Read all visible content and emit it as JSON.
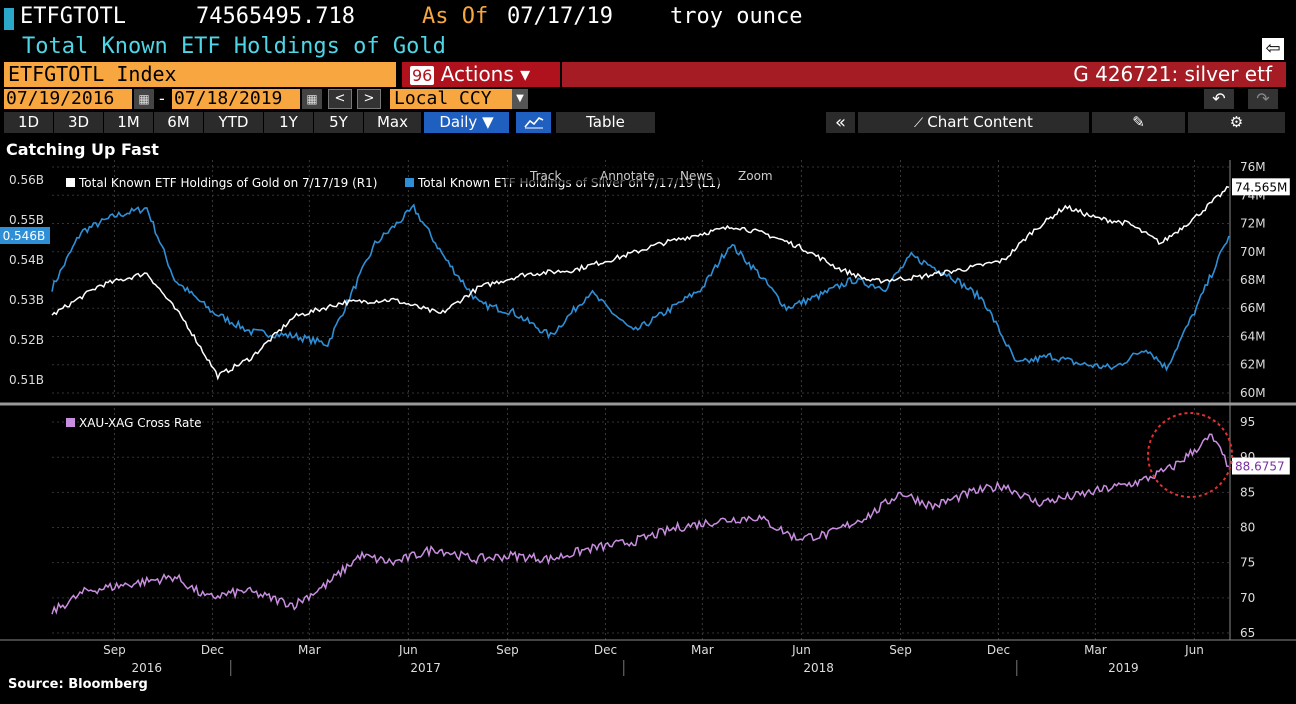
{
  "header": {
    "ticker": "ETFGTOTL",
    "value": "74565495.718",
    "as_of_label": "As Of",
    "as_of_date": "07/17/19",
    "unit": "troy ounce",
    "subtitle": "Total Known ETF Holdings of Gold"
  },
  "toolbar": {
    "index_label": "ETFGTOTL Index",
    "actions_num": "96",
    "actions_label": "Actions ▾",
    "search_text": "G 426721: silver etf",
    "start_date": "07/19/2016",
    "end_date": "07/18/2019",
    "date_sep": "-",
    "currency": "Local CCY",
    "periods": [
      "1D",
      "3D",
      "1M",
      "6M",
      "YTD",
      "1Y",
      "5Y",
      "Max"
    ],
    "frequency": "Daily ▼",
    "table_label": "Table",
    "chart_content_label": "Chart Content"
  },
  "chart_title": "Catching Up Fast",
  "source": "Source: Bloomberg",
  "chart_tools": [
    "Track",
    "Annotate",
    "News",
    "Zoom"
  ],
  "colors": {
    "background": "#000000",
    "gold": "#ffffff",
    "silver": "#2f8fd6",
    "ratio": "#c98ee0",
    "orange": "#f7a640",
    "red": "#a51c24",
    "highlight_circle": "#e03030"
  },
  "icons": [
    "calendar-icon",
    "arrow-left-icon",
    "arrow-right-icon",
    "dropdown-icon",
    "undo-icon",
    "redo-icon",
    "line-chart-icon",
    "collapse-icon",
    "chart-content-icon",
    "edit-icon",
    "gear-icon",
    "back-icon"
  ],
  "chart_data": [
    {
      "type": "line",
      "title": "",
      "x_range": [
        "2016-07-19",
        "2019-07-18"
      ],
      "x_tick_labels": [
        "Sep",
        "Dec",
        "Mar",
        "Jun",
        "Sep",
        "Dec",
        "Mar",
        "Jun",
        "Sep",
        "Dec",
        "Mar",
        "Jun"
      ],
      "year_labels": [
        "2016",
        "2017",
        "2018",
        "2019"
      ],
      "left_axis": {
        "ticks": [
          "0.51B",
          "0.52B",
          "0.53B",
          "0.54B",
          "0.55B",
          "0.56B"
        ],
        "ylim": [
          0.505,
          0.565
        ],
        "last_value_label": "0.546B"
      },
      "right_axis": {
        "ticks": [
          "60M",
          "62M",
          "64M",
          "66M",
          "68M",
          "70M",
          "72M",
          "74M",
          "76M"
        ],
        "ylim": [
          59.5,
          76.5
        ],
        "last_value_label": "74.565M"
      },
      "series": [
        {
          "name": "Total Known ETF Holdings of Gold on 7/17/19 (R1)",
          "axis": "right",
          "color": "#ffffff",
          "x": [
            "2016-07-19",
            "2016-09-01",
            "2016-10-15",
            "2016-11-20",
            "2016-12-20",
            "2017-01-20",
            "2017-03-01",
            "2017-04-15",
            "2017-06-01",
            "2017-07-15",
            "2017-08-20",
            "2017-10-01",
            "2017-11-15",
            "2018-01-01",
            "2018-02-01",
            "2018-03-15",
            "2018-04-15",
            "2018-05-15",
            "2018-06-15",
            "2018-07-20",
            "2018-08-20",
            "2018-10-01",
            "2018-11-15",
            "2018-12-20",
            "2019-01-15",
            "2019-02-15",
            "2019-03-15",
            "2019-04-15",
            "2019-05-15",
            "2019-06-15",
            "2019-07-17"
          ],
          "values": [
            65.5,
            67.6,
            68.5,
            65.0,
            61.2,
            62.5,
            65.4,
            66.4,
            66.6,
            65.6,
            67.5,
            68.4,
            68.7,
            69.7,
            70.5,
            71.3,
            71.8,
            71.2,
            70.3,
            68.8,
            67.9,
            68.2,
            68.8,
            69.4,
            71.4,
            73.2,
            72.4,
            72.0,
            70.6,
            72.4,
            74.565
          ]
        },
        {
          "name": "Total Known ETF Holdings of Silver on 7/17/19 (L1)",
          "axis": "left",
          "color": "#2f8fd6",
          "x": [
            "2016-07-19",
            "2016-08-15",
            "2016-09-15",
            "2016-10-15",
            "2016-11-10",
            "2016-12-15",
            "2017-01-20",
            "2017-03-01",
            "2017-04-01",
            "2017-05-15",
            "2017-06-20",
            "2017-07-20",
            "2017-08-20",
            "2017-09-20",
            "2017-10-25",
            "2017-12-01",
            "2018-01-10",
            "2018-02-15",
            "2018-03-15",
            "2018-04-10",
            "2018-05-05",
            "2018-06-01",
            "2018-07-01",
            "2018-08-01",
            "2018-09-01",
            "2018-09-25",
            "2018-11-01",
            "2018-12-01",
            "2019-01-01",
            "2019-02-01",
            "2019-03-01",
            "2019-04-01",
            "2019-05-01",
            "2019-05-20",
            "2019-06-15",
            "2019-07-17"
          ],
          "values": [
            0.533,
            0.547,
            0.551,
            0.553,
            0.535,
            0.527,
            0.522,
            0.521,
            0.519,
            0.544,
            0.553,
            0.54,
            0.529,
            0.527,
            0.521,
            0.532,
            0.522,
            0.528,
            0.533,
            0.544,
            0.537,
            0.528,
            0.531,
            0.535,
            0.533,
            0.541,
            0.536,
            0.53,
            0.514,
            0.516,
            0.514,
            0.513,
            0.518,
            0.513,
            0.527,
            0.546
          ]
        }
      ]
    },
    {
      "type": "line",
      "title": "",
      "x_range": [
        "2016-07-19",
        "2019-07-18"
      ],
      "right_axis": {
        "ticks": [
          "65",
          "70",
          "75",
          "80",
          "85",
          "90",
          "95"
        ],
        "ylim": [
          64,
          97
        ],
        "last_value_label": "88.6757"
      },
      "series": [
        {
          "name": "XAU-XAG Cross Rate",
          "axis": "right",
          "color": "#c98ee0",
          "x": [
            "2016-07-19",
            "2016-08-20",
            "2016-10-01",
            "2016-11-10",
            "2016-12-10",
            "2017-01-15",
            "2017-03-01",
            "2017-04-01",
            "2017-05-01",
            "2017-06-01",
            "2017-07-10",
            "2017-08-15",
            "2017-09-20",
            "2017-10-25",
            "2017-12-01",
            "2018-01-10",
            "2018-02-20",
            "2018-04-01",
            "2018-05-05",
            "2018-06-10",
            "2018-07-10",
            "2018-08-20",
            "2018-09-15",
            "2018-10-15",
            "2018-11-20",
            "2018-12-20",
            "2019-01-20",
            "2019-02-25",
            "2019-03-25",
            "2019-04-25",
            "2019-05-25",
            "2019-06-15",
            "2019-07-01",
            "2019-07-17"
          ],
          "values": [
            68,
            71,
            72,
            73,
            70,
            71,
            69,
            72,
            76,
            75,
            77,
            75.5,
            76,
            75.5,
            77,
            78,
            80,
            81,
            81.5,
            78.5,
            79,
            82,
            85,
            83,
            85,
            86,
            83.5,
            84.5,
            85.5,
            86.5,
            88.5,
            91,
            93,
            88.6757
          ]
        }
      ]
    }
  ]
}
